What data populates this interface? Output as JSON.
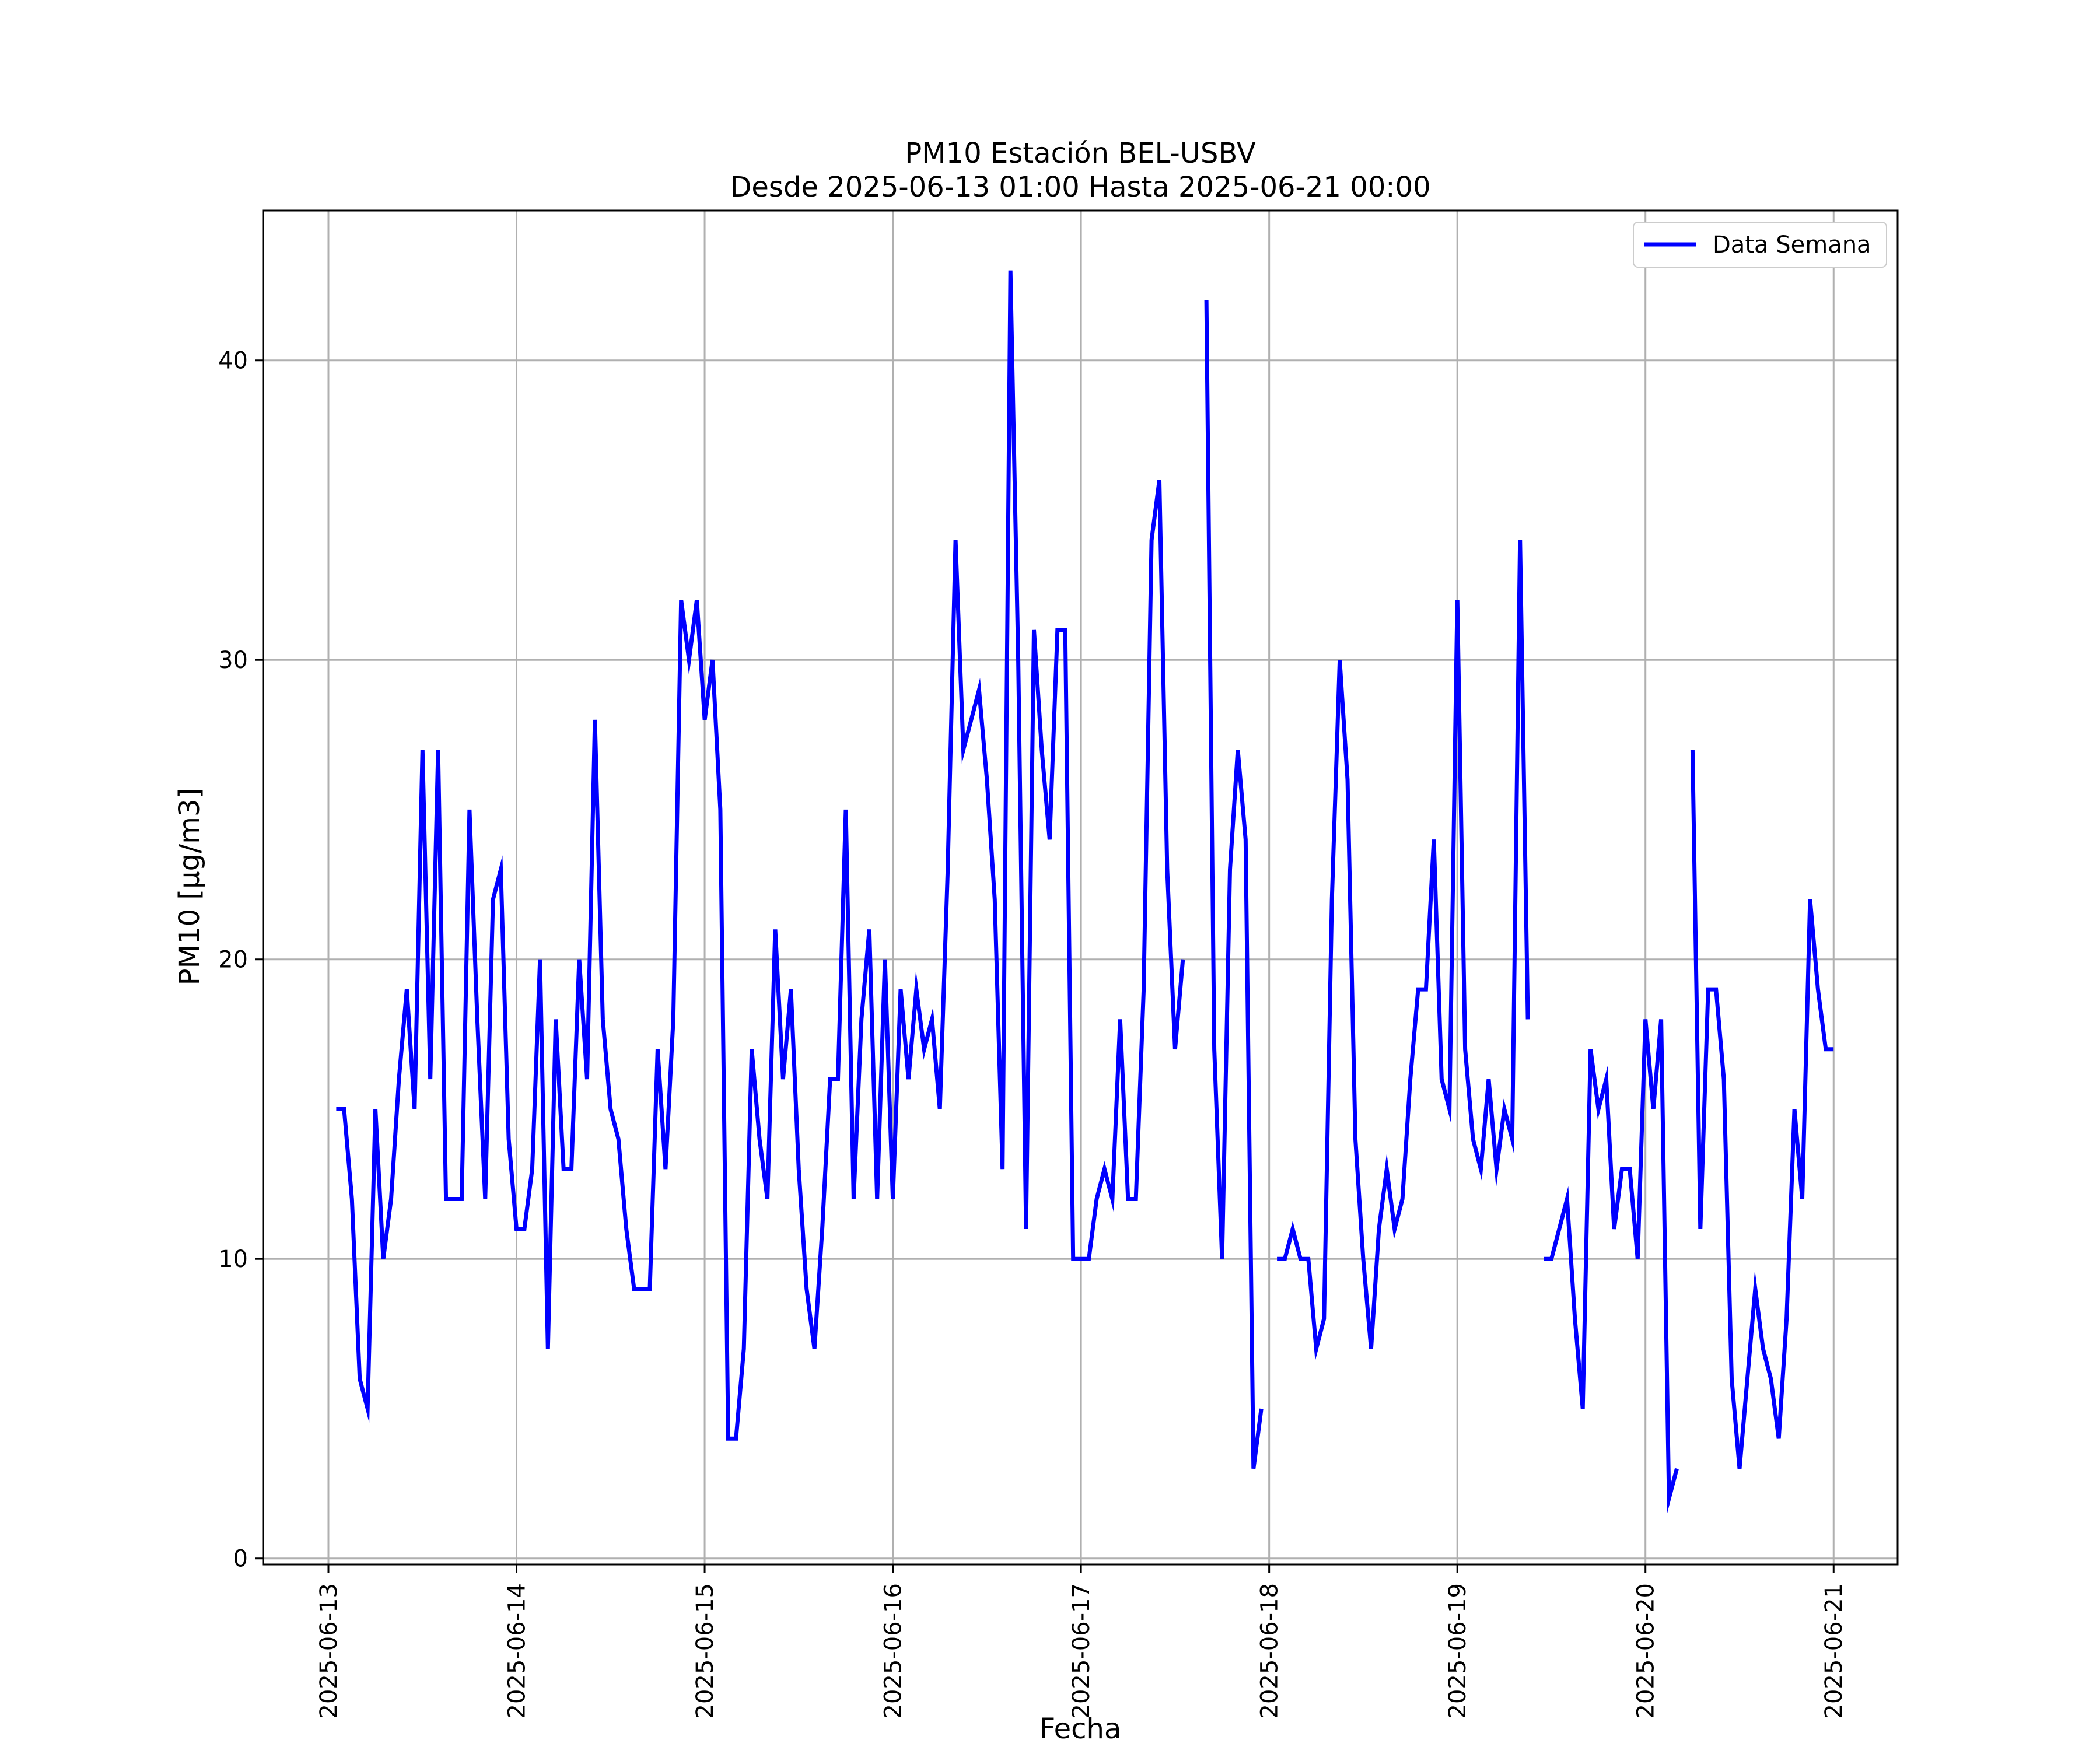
{
  "colors": {
    "series": "#0000ff",
    "grid": "#b0b0b0",
    "axes": "#000000",
    "background": "#ffffff"
  },
  "chart_data": {
    "type": "line",
    "title": "PM10 Estación BEL-USBV",
    "subtitle": "Desde 2025-06-13 01:00 Hasta 2025-06-21 00:00",
    "xlabel": "Fecha",
    "ylabel": "PM10 [μg/m3]",
    "xlim": [
      "2025-06-12 15:40",
      "2025-06-21 08:10"
    ],
    "ylim": [
      -0.2,
      45
    ],
    "xticks": [
      "2025-06-13",
      "2025-06-14",
      "2025-06-15",
      "2025-06-16",
      "2025-06-17",
      "2025-06-18",
      "2025-06-19",
      "2025-06-20",
      "2025-06-21"
    ],
    "yticks": [
      "0",
      "10",
      "20",
      "30",
      "40"
    ],
    "grid": true,
    "legend": {
      "position": "top-right"
    },
    "series": [
      {
        "name": "Data Semana",
        "color": "#0000ff",
        "points": [
          [
            "2025-06-13 01:00",
            15
          ],
          [
            "2025-06-13 02:00",
            15
          ],
          [
            "2025-06-13 03:00",
            12
          ],
          [
            "2025-06-13 04:00",
            6
          ],
          [
            "2025-06-13 05:00",
            5
          ],
          [
            "2025-06-13 06:00",
            15
          ],
          [
            "2025-06-13 07:00",
            10
          ],
          [
            "2025-06-13 08:00",
            12
          ],
          [
            "2025-06-13 09:00",
            16
          ],
          [
            "2025-06-13 10:00",
            19
          ],
          [
            "2025-06-13 11:00",
            15
          ],
          [
            "2025-06-13 12:00",
            27
          ],
          [
            "2025-06-13 13:00",
            16
          ],
          [
            "2025-06-13 14:00",
            27
          ],
          [
            "2025-06-13 15:00",
            12
          ],
          [
            "2025-06-13 16:00",
            12
          ],
          [
            "2025-06-13 17:00",
            12
          ],
          [
            "2025-06-13 18:00",
            25
          ],
          [
            "2025-06-13 19:00",
            18
          ],
          [
            "2025-06-13 20:00",
            12
          ],
          [
            "2025-06-13 21:00",
            22
          ],
          [
            "2025-06-13 22:00",
            23
          ],
          [
            "2025-06-13 23:00",
            14
          ],
          [
            "2025-06-14 00:00",
            11
          ],
          [
            "2025-06-14 01:00",
            11
          ],
          [
            "2025-06-14 02:00",
            13
          ],
          [
            "2025-06-14 03:00",
            20
          ],
          [
            "2025-06-14 04:00",
            7
          ],
          [
            "2025-06-14 05:00",
            18
          ],
          [
            "2025-06-14 06:00",
            13
          ],
          [
            "2025-06-14 07:00",
            13
          ],
          [
            "2025-06-14 08:00",
            20
          ],
          [
            "2025-06-14 09:00",
            16
          ],
          [
            "2025-06-14 10:00",
            28
          ],
          [
            "2025-06-14 11:00",
            18
          ],
          [
            "2025-06-14 12:00",
            15
          ],
          [
            "2025-06-14 13:00",
            14
          ],
          [
            "2025-06-14 14:00",
            11
          ],
          [
            "2025-06-14 15:00",
            9
          ],
          [
            "2025-06-14 16:00",
            9
          ],
          [
            "2025-06-14 17:00",
            9
          ],
          [
            "2025-06-14 18:00",
            17
          ],
          [
            "2025-06-14 19:00",
            13
          ],
          [
            "2025-06-14 20:00",
            18
          ],
          [
            "2025-06-14 21:00",
            32
          ],
          [
            "2025-06-14 22:00",
            30
          ],
          [
            "2025-06-14 23:00",
            32
          ],
          [
            "2025-06-15 00:00",
            28
          ],
          [
            "2025-06-15 01:00",
            30
          ],
          [
            "2025-06-15 02:00",
            25
          ],
          [
            "2025-06-15 03:00",
            4
          ],
          [
            "2025-06-15 04:00",
            4
          ],
          [
            "2025-06-15 05:00",
            7
          ],
          [
            "2025-06-15 06:00",
            17
          ],
          [
            "2025-06-15 07:00",
            14
          ],
          [
            "2025-06-15 08:00",
            12
          ],
          [
            "2025-06-15 09:00",
            21
          ],
          [
            "2025-06-15 10:00",
            16
          ],
          [
            "2025-06-15 11:00",
            19
          ],
          [
            "2025-06-15 12:00",
            13
          ],
          [
            "2025-06-15 13:00",
            9
          ],
          [
            "2025-06-15 14:00",
            7
          ],
          [
            "2025-06-15 15:00",
            11
          ],
          [
            "2025-06-15 16:00",
            16
          ],
          [
            "2025-06-15 17:00",
            16
          ],
          [
            "2025-06-15 18:00",
            25
          ],
          [
            "2025-06-15 19:00",
            12
          ],
          [
            "2025-06-15 20:00",
            18
          ],
          [
            "2025-06-15 21:00",
            21
          ],
          [
            "2025-06-15 22:00",
            12
          ],
          [
            "2025-06-15 23:00",
            20
          ],
          [
            "2025-06-16 00:00",
            12
          ],
          [
            "2025-06-16 01:00",
            19
          ],
          [
            "2025-06-16 02:00",
            16
          ],
          [
            "2025-06-16 03:00",
            19
          ],
          [
            "2025-06-16 04:00",
            17
          ],
          [
            "2025-06-16 05:00",
            18
          ],
          [
            "2025-06-16 06:00",
            15
          ],
          [
            "2025-06-16 07:00",
            23
          ],
          [
            "2025-06-16 08:00",
            34
          ],
          [
            "2025-06-16 09:00",
            27
          ],
          [
            "2025-06-16 10:00",
            28
          ],
          [
            "2025-06-16 11:00",
            29
          ],
          [
            "2025-06-16 12:00",
            26
          ],
          [
            "2025-06-16 13:00",
            22
          ],
          [
            "2025-06-16 14:00",
            13
          ],
          [
            "2025-06-16 15:00",
            43
          ],
          [
            "2025-06-16 16:00",
            30
          ],
          [
            "2025-06-16 17:00",
            11
          ],
          [
            "2025-06-16 18:00",
            31
          ],
          [
            "2025-06-16 19:00",
            27
          ],
          [
            "2025-06-16 20:00",
            24
          ],
          [
            "2025-06-16 21:00",
            31
          ],
          [
            "2025-06-16 22:00",
            31
          ],
          [
            "2025-06-16 23:00",
            10
          ],
          [
            "2025-06-17 00:00",
            10
          ],
          [
            "2025-06-17 01:00",
            10
          ],
          [
            "2025-06-17 02:00",
            12
          ],
          [
            "2025-06-17 03:00",
            13
          ],
          [
            "2025-06-17 04:00",
            12
          ],
          [
            "2025-06-17 05:00",
            18
          ],
          [
            "2025-06-17 06:00",
            12
          ],
          [
            "2025-06-17 07:00",
            12
          ],
          [
            "2025-06-17 08:00",
            19
          ],
          [
            "2025-06-17 09:00",
            34
          ],
          [
            "2025-06-17 10:00",
            36
          ],
          [
            "2025-06-17 11:00",
            23
          ],
          [
            "2025-06-17 12:00",
            17
          ],
          [
            "2025-06-17 13:00",
            20
          ],
          [
            "2025-06-17 14:00",
            null
          ],
          [
            "2025-06-17 15:00",
            null
          ],
          [
            "2025-06-17 16:00",
            42
          ],
          [
            "2025-06-17 17:00",
            17
          ],
          [
            "2025-06-17 18:00",
            10
          ],
          [
            "2025-06-17 19:00",
            23
          ],
          [
            "2025-06-17 20:00",
            27
          ],
          [
            "2025-06-17 21:00",
            24
          ],
          [
            "2025-06-17 22:00",
            3
          ],
          [
            "2025-06-17 23:00",
            5
          ],
          [
            "2025-06-18 00:00",
            null
          ],
          [
            "2025-06-18 01:00",
            10
          ],
          [
            "2025-06-18 02:00",
            10
          ],
          [
            "2025-06-18 03:00",
            11
          ],
          [
            "2025-06-18 04:00",
            10
          ],
          [
            "2025-06-18 05:00",
            10
          ],
          [
            "2025-06-18 06:00",
            7
          ],
          [
            "2025-06-18 07:00",
            8
          ],
          [
            "2025-06-18 08:00",
            22
          ],
          [
            "2025-06-18 09:00",
            30
          ],
          [
            "2025-06-18 10:00",
            26
          ],
          [
            "2025-06-18 11:00",
            14
          ],
          [
            "2025-06-18 12:00",
            10
          ],
          [
            "2025-06-18 13:00",
            7
          ],
          [
            "2025-06-18 14:00",
            11
          ],
          [
            "2025-06-18 15:00",
            13
          ],
          [
            "2025-06-18 16:00",
            11
          ],
          [
            "2025-06-18 17:00",
            12
          ],
          [
            "2025-06-18 18:00",
            16
          ],
          [
            "2025-06-18 19:00",
            19
          ],
          [
            "2025-06-18 20:00",
            19
          ],
          [
            "2025-06-18 21:00",
            24
          ],
          [
            "2025-06-18 22:00",
            16
          ],
          [
            "2025-06-18 23:00",
            15
          ],
          [
            "2025-06-19 00:00",
            32
          ],
          [
            "2025-06-19 01:00",
            17
          ],
          [
            "2025-06-19 02:00",
            14
          ],
          [
            "2025-06-19 03:00",
            13
          ],
          [
            "2025-06-19 04:00",
            16
          ],
          [
            "2025-06-19 05:00",
            13
          ],
          [
            "2025-06-19 06:00",
            15
          ],
          [
            "2025-06-19 07:00",
            14
          ],
          [
            "2025-06-19 08:00",
            34
          ],
          [
            "2025-06-19 09:00",
            18
          ],
          [
            "2025-06-19 10:00",
            null
          ],
          [
            "2025-06-19 11:00",
            10
          ],
          [
            "2025-06-19 12:00",
            10
          ],
          [
            "2025-06-19 13:00",
            11
          ],
          [
            "2025-06-19 14:00",
            12
          ],
          [
            "2025-06-19 15:00",
            8
          ],
          [
            "2025-06-19 16:00",
            5
          ],
          [
            "2025-06-19 17:00",
            17
          ],
          [
            "2025-06-19 18:00",
            15
          ],
          [
            "2025-06-19 19:00",
            16
          ],
          [
            "2025-06-19 20:00",
            11
          ],
          [
            "2025-06-19 21:00",
            13
          ],
          [
            "2025-06-19 22:00",
            13
          ],
          [
            "2025-06-19 23:00",
            10
          ],
          [
            "2025-06-20 00:00",
            18
          ],
          [
            "2025-06-20 01:00",
            15
          ],
          [
            "2025-06-20 02:00",
            18
          ],
          [
            "2025-06-20 03:00",
            2
          ],
          [
            "2025-06-20 04:00",
            3
          ],
          [
            "2025-06-20 05:00",
            null
          ],
          [
            "2025-06-20 06:00",
            27
          ],
          [
            "2025-06-20 07:00",
            11
          ],
          [
            "2025-06-20 08:00",
            19
          ],
          [
            "2025-06-20 09:00",
            19
          ],
          [
            "2025-06-20 10:00",
            16
          ],
          [
            "2025-06-20 11:00",
            6
          ],
          [
            "2025-06-20 12:00",
            3
          ],
          [
            "2025-06-20 13:00",
            6
          ],
          [
            "2025-06-20 14:00",
            9
          ],
          [
            "2025-06-20 15:00",
            7
          ],
          [
            "2025-06-20 16:00",
            6
          ],
          [
            "2025-06-20 17:00",
            4
          ],
          [
            "2025-06-20 18:00",
            8
          ],
          [
            "2025-06-20 19:00",
            15
          ],
          [
            "2025-06-20 20:00",
            12
          ],
          [
            "2025-06-20 21:00",
            22
          ],
          [
            "2025-06-20 22:00",
            19
          ],
          [
            "2025-06-20 23:00",
            17
          ],
          [
            "2025-06-21 00:00",
            17
          ]
        ]
      }
    ]
  }
}
